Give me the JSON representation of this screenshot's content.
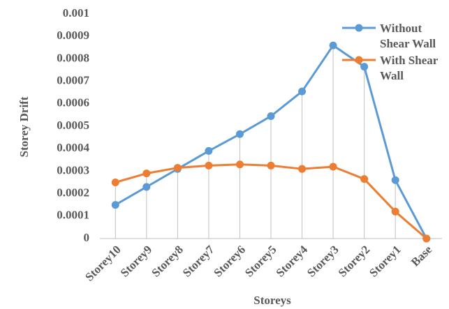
{
  "chart_data": {
    "type": "line",
    "x_label": "Storeys",
    "y_label": "Storey Drift",
    "categories": [
      "Storey10",
      "Storey9",
      "Storey8",
      "Storey7",
      "Storey6",
      "Storey5",
      "Storey4",
      "Storey3",
      "Storey2",
      "Storey1",
      "Base"
    ],
    "series": [
      {
        "name": "Without Shear Wall",
        "color": "#5b9bd5",
        "values": [
          0.00015,
          0.00023,
          0.00031,
          0.00039,
          0.000465,
          0.000545,
          0.000655,
          0.00086,
          0.000765,
          0.00026,
          0
        ]
      },
      {
        "name": "With Shear Wall",
        "color": "#ed7d31",
        "values": [
          0.00025,
          0.00029,
          0.000315,
          0.000325,
          0.00033,
          0.000325,
          0.00031,
          0.00032,
          0.000265,
          0.00012,
          0
        ]
      }
    ],
    "ylim": [
      0,
      0.001
    ],
    "yticks": [
      0,
      0.0001,
      0.0002,
      0.0003,
      0.0004,
      0.0005,
      0.0006,
      0.0007,
      0.0008,
      0.0009,
      0.001
    ],
    "legend": "top-right",
    "drop_lines": true
  }
}
